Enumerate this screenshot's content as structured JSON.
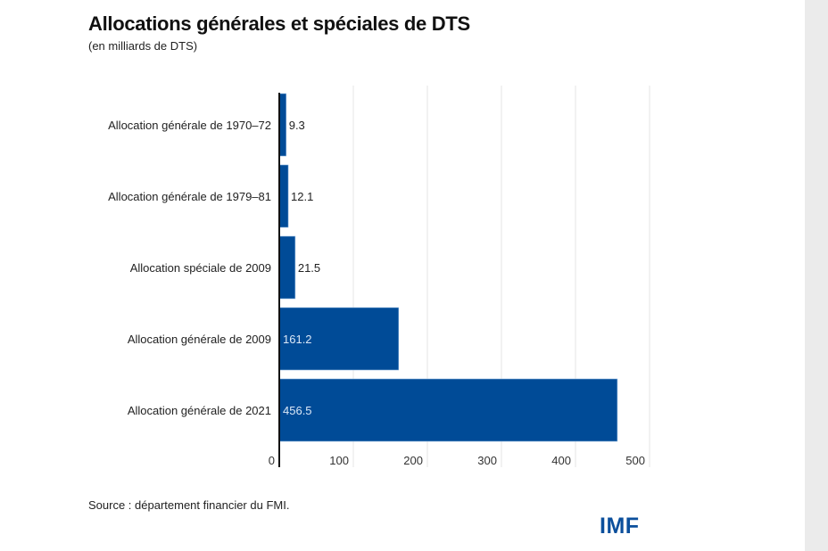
{
  "chart_data": {
    "type": "bar",
    "orientation": "horizontal",
    "title": "Allocations générales et spéciales de DTS",
    "subtitle": "(en milliards de DTS)",
    "categories": [
      "Allocation générale de 1970-72",
      "Allocation générale de 1979-81",
      "Allocation spéciale de 2009",
      "Allocation générale de 2009",
      "Allocation générale de 2021"
    ],
    "values": [
      9.3,
      12.1,
      21.5,
      161.2,
      456.5
    ],
    "data_labels": [
      "9.3",
      "12.1",
      "21.5",
      "161.2",
      "456.5"
    ],
    "xlim": [
      0,
      500
    ],
    "xticks": [
      0,
      100,
      200,
      300,
      400,
      500
    ],
    "xlabel": "",
    "ylabel": "",
    "grid": "vertical",
    "bar_color": "#004b97"
  },
  "footer": {
    "source": "Source : département financier du FMI.",
    "logo": "IMF"
  }
}
